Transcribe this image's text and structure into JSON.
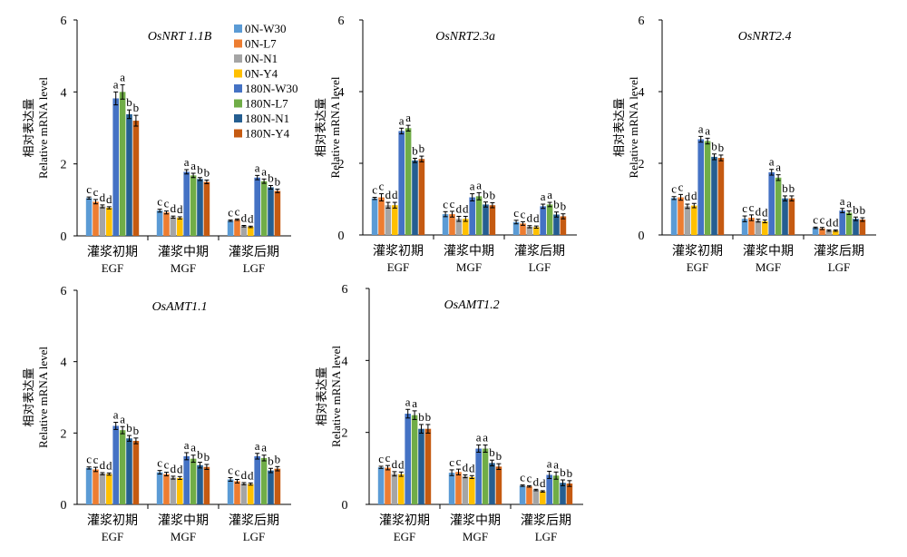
{
  "legend": [
    {
      "name": "0N-W30",
      "color": "#5B9BD5"
    },
    {
      "name": "0N-L7",
      "color": "#ED7D31"
    },
    {
      "name": "0N-N1",
      "color": "#A5A5A5"
    },
    {
      "name": "0N-Y4",
      "color": "#FFC000"
    },
    {
      "name": "180N-W30",
      "color": "#4472C4"
    },
    {
      "name": "180N-L7",
      "color": "#70AD47"
    },
    {
      "name": "180N-N1",
      "color": "#255E91"
    },
    {
      "name": "180N-Y4",
      "color": "#C55A11"
    }
  ],
  "chart_data": [
    {
      "type": "bar",
      "title": "OsNRT 1.1B",
      "ylabel_cn": "相对表达量",
      "ylabel": "Relative mRNA level",
      "ylim": [
        0,
        6
      ],
      "yticks": [
        0,
        2,
        4,
        6
      ],
      "categories": [
        {
          "cn": "灌浆初期",
          "en": "EGF"
        },
        {
          "cn": "灌浆中期",
          "en": "MGF"
        },
        {
          "cn": "灌浆后期",
          "en": "LGF"
        }
      ],
      "series": [
        {
          "name": "0N-W30",
          "values": [
            1.05,
            0.7,
            0.42
          ],
          "errors": [
            0.03,
            0.04,
            0.02
          ]
        },
        {
          "name": "0N-L7",
          "values": [
            0.95,
            0.65,
            0.45
          ],
          "errors": [
            0.06,
            0.04,
            0.02
          ]
        },
        {
          "name": "0N-N1",
          "values": [
            0.82,
            0.52,
            0.27
          ],
          "errors": [
            0.04,
            0.03,
            0.02
          ]
        },
        {
          "name": "0N-Y4",
          "values": [
            0.78,
            0.5,
            0.25
          ],
          "errors": [
            0.03,
            0.03,
            0.02
          ]
        },
        {
          "name": "180N-W30",
          "values": [
            3.82,
            1.78,
            1.62
          ],
          "errors": [
            0.18,
            0.06,
            0.06
          ]
        },
        {
          "name": "180N-L7",
          "values": [
            4.0,
            1.68,
            1.52
          ],
          "errors": [
            0.2,
            0.06,
            0.06
          ]
        },
        {
          "name": "180N-N1",
          "values": [
            3.38,
            1.58,
            1.35
          ],
          "errors": [
            0.12,
            0.04,
            0.05
          ]
        },
        {
          "name": "180N-Y4",
          "values": [
            3.2,
            1.5,
            1.25
          ],
          "errors": [
            0.15,
            0.05,
            0.05
          ]
        }
      ],
      "letters": [
        [
          "c",
          "c",
          "d",
          "d",
          "a",
          "a",
          "b",
          "b"
        ],
        [
          "c",
          "c",
          "d",
          "d",
          "a",
          "a",
          "b",
          "b"
        ],
        [
          "c",
          "c",
          "d",
          "d",
          "a",
          "a",
          "b",
          "b"
        ]
      ]
    },
    {
      "type": "bar",
      "title": "OsNRT2.3a",
      "ylabel_cn": "相对表达量",
      "ylabel": "Relative mRNA level",
      "ylim": [
        0,
        6
      ],
      "yticks": [
        0,
        2,
        4,
        6
      ],
      "categories": [
        {
          "cn": "灌浆初期",
          "en": "EGF"
        },
        {
          "cn": "灌浆中期",
          "en": "MGF"
        },
        {
          "cn": "灌浆后期",
          "en": "LGF"
        }
      ],
      "series": [
        {
          "name": "0N-W30",
          "values": [
            1.02,
            0.58,
            0.36
          ],
          "errors": [
            0.03,
            0.07,
            0.05
          ]
        },
        {
          "name": "0N-L7",
          "values": [
            1.05,
            0.58,
            0.32
          ],
          "errors": [
            0.1,
            0.08,
            0.05
          ]
        },
        {
          "name": "0N-N1",
          "values": [
            0.83,
            0.45,
            0.23
          ],
          "errors": [
            0.08,
            0.07,
            0.03
          ]
        },
        {
          "name": "0N-Y4",
          "values": [
            0.83,
            0.45,
            0.22
          ],
          "errors": [
            0.08,
            0.07,
            0.03
          ]
        },
        {
          "name": "180N-W30",
          "values": [
            2.9,
            1.05,
            0.8
          ],
          "errors": [
            0.08,
            0.1,
            0.06
          ]
        },
        {
          "name": "180N-L7",
          "values": [
            2.98,
            1.08,
            0.85
          ],
          "errors": [
            0.08,
            0.1,
            0.06
          ]
        },
        {
          "name": "180N-N1",
          "values": [
            2.08,
            0.85,
            0.57
          ],
          "errors": [
            0.06,
            0.07,
            0.07
          ]
        },
        {
          "name": "180N-Y4",
          "values": [
            2.12,
            0.83,
            0.52
          ],
          "errors": [
            0.08,
            0.07,
            0.07
          ]
        }
      ],
      "letters": [
        [
          "c",
          "c",
          "d",
          "d",
          "a",
          "a",
          "b",
          "b"
        ],
        [
          "c",
          "c",
          "d",
          "d",
          "a",
          "a",
          "b",
          "b"
        ],
        [
          "c",
          "c",
          "d",
          "d",
          "a",
          "a",
          "b",
          "b"
        ]
      ]
    },
    {
      "type": "bar",
      "title": "OsNRT2.4",
      "ylabel_cn": "相对表达量",
      "ylabel": "Relative mRNA level",
      "ylim": [
        0,
        6
      ],
      "yticks": [
        0,
        2,
        4,
        6
      ],
      "categories": [
        {
          "cn": "灌浆初期",
          "en": "EGF"
        },
        {
          "cn": "灌浆中期",
          "en": "MGF"
        },
        {
          "cn": "灌浆后期",
          "en": "LGF"
        }
      ],
      "series": [
        {
          "name": "0N-W30",
          "values": [
            1.03,
            0.45,
            0.2
          ],
          "errors": [
            0.04,
            0.08,
            0.02
          ]
        },
        {
          "name": "0N-L7",
          "values": [
            1.05,
            0.48,
            0.18
          ],
          "errors": [
            0.08,
            0.08,
            0.03
          ]
        },
        {
          "name": "0N-N1",
          "values": [
            0.8,
            0.4,
            0.12
          ],
          "errors": [
            0.06,
            0.04,
            0.02
          ]
        },
        {
          "name": "0N-Y4",
          "values": [
            0.82,
            0.38,
            0.12
          ],
          "errors": [
            0.06,
            0.04,
            0.02
          ]
        },
        {
          "name": "180N-W30",
          "values": [
            2.67,
            1.75,
            0.68
          ],
          "errors": [
            0.08,
            0.08,
            0.06
          ]
        },
        {
          "name": "180N-L7",
          "values": [
            2.62,
            1.6,
            0.62
          ],
          "errors": [
            0.08,
            0.08,
            0.05
          ]
        },
        {
          "name": "180N-N1",
          "values": [
            2.18,
            1.02,
            0.45
          ],
          "errors": [
            0.08,
            0.07,
            0.05
          ]
        },
        {
          "name": "180N-Y4",
          "values": [
            2.15,
            1.02,
            0.43
          ],
          "errors": [
            0.08,
            0.07,
            0.05
          ]
        }
      ],
      "letters": [
        [
          "c",
          "c",
          "d",
          "d",
          "a",
          "a",
          "b",
          "b"
        ],
        [
          "c",
          "c",
          "d",
          "d",
          "a",
          "a",
          "b",
          "b"
        ],
        [
          "c",
          "c",
          "d",
          "d",
          "a",
          "a",
          "b",
          "b"
        ]
      ]
    },
    {
      "type": "bar",
      "title": "OsAMT1.1",
      "ylabel_cn": "相对表达量",
      "ylabel": "Relative mRNA level",
      "ylim": [
        0,
        6
      ],
      "yticks": [
        0,
        2,
        4,
        6
      ],
      "categories": [
        {
          "cn": "灌浆初期",
          "en": "EGF"
        },
        {
          "cn": "灌浆中期",
          "en": "MGF"
        },
        {
          "cn": "灌浆后期",
          "en": "LGF"
        }
      ],
      "series": [
        {
          "name": "0N-W30",
          "values": [
            1.02,
            0.9,
            0.7
          ],
          "errors": [
            0.03,
            0.05,
            0.05
          ]
        },
        {
          "name": "0N-L7",
          "values": [
            0.98,
            0.85,
            0.65
          ],
          "errors": [
            0.06,
            0.05,
            0.05
          ]
        },
        {
          "name": "0N-N1",
          "values": [
            0.86,
            0.75,
            0.58
          ],
          "errors": [
            0.03,
            0.04,
            0.03
          ]
        },
        {
          "name": "0N-Y4",
          "values": [
            0.85,
            0.74,
            0.57
          ],
          "errors": [
            0.03,
            0.04,
            0.03
          ]
        },
        {
          "name": "180N-W30",
          "values": [
            2.2,
            1.35,
            1.35
          ],
          "errors": [
            0.1,
            0.1,
            0.08
          ]
        },
        {
          "name": "180N-L7",
          "values": [
            2.08,
            1.28,
            1.3
          ],
          "errors": [
            0.1,
            0.1,
            0.08
          ]
        },
        {
          "name": "180N-N1",
          "values": [
            1.85,
            1.1,
            0.95
          ],
          "errors": [
            0.08,
            0.08,
            0.06
          ]
        },
        {
          "name": "180N-Y4",
          "values": [
            1.78,
            1.05,
            1.0
          ],
          "errors": [
            0.08,
            0.07,
            0.06
          ]
        }
      ],
      "letters": [
        [
          "c",
          "c",
          "d",
          "d",
          "a",
          "a",
          "b",
          "b"
        ],
        [
          "c",
          "c",
          "d",
          "d",
          "a",
          "a",
          "b",
          "b"
        ],
        [
          "c",
          "c",
          "d",
          "d",
          "a",
          "a",
          "b",
          "b"
        ]
      ]
    },
    {
      "type": "bar",
      "title": "OsAMT1.2",
      "ylabel_cn": "相对表达量",
      "ylabel": "Relative mRNA level",
      "ylim": [
        0,
        6
      ],
      "yticks": [
        0,
        2,
        4,
        6
      ],
      "categories": [
        {
          "cn": "灌浆初期",
          "en": "EGF"
        },
        {
          "cn": "灌浆中期",
          "en": "MGF"
        },
        {
          "cn": "灌浆后期",
          "en": "LGF"
        }
      ],
      "series": [
        {
          "name": "0N-W30",
          "values": [
            1.03,
            0.88,
            0.52
          ],
          "errors": [
            0.03,
            0.08,
            0.02
          ]
        },
        {
          "name": "0N-L7",
          "values": [
            1.02,
            0.9,
            0.5
          ],
          "errors": [
            0.06,
            0.08,
            0.02
          ]
        },
        {
          "name": "0N-N1",
          "values": [
            0.85,
            0.78,
            0.4
          ],
          "errors": [
            0.06,
            0.04,
            0.02
          ]
        },
        {
          "name": "0N-Y4",
          "values": [
            0.84,
            0.76,
            0.36
          ],
          "errors": [
            0.06,
            0.04,
            0.02
          ]
        },
        {
          "name": "180N-W30",
          "values": [
            2.52,
            1.55,
            0.82
          ],
          "errors": [
            0.12,
            0.1,
            0.1
          ]
        },
        {
          "name": "180N-L7",
          "values": [
            2.48,
            1.55,
            0.8
          ],
          "errors": [
            0.12,
            0.1,
            0.1
          ]
        },
        {
          "name": "180N-N1",
          "values": [
            2.1,
            1.15,
            0.6
          ],
          "errors": [
            0.12,
            0.08,
            0.08
          ]
        },
        {
          "name": "180N-Y4",
          "values": [
            2.1,
            1.05,
            0.58
          ],
          "errors": [
            0.12,
            0.08,
            0.08
          ]
        }
      ],
      "letters": [
        [
          "c",
          "c",
          "d",
          "d",
          "a",
          "a",
          "b",
          "b"
        ],
        [
          "c",
          "c",
          "d",
          "d",
          "a",
          "a",
          "b",
          "b"
        ],
        [
          "c",
          "c",
          "d",
          "d",
          "a",
          "a",
          "b",
          "b"
        ]
      ]
    }
  ]
}
